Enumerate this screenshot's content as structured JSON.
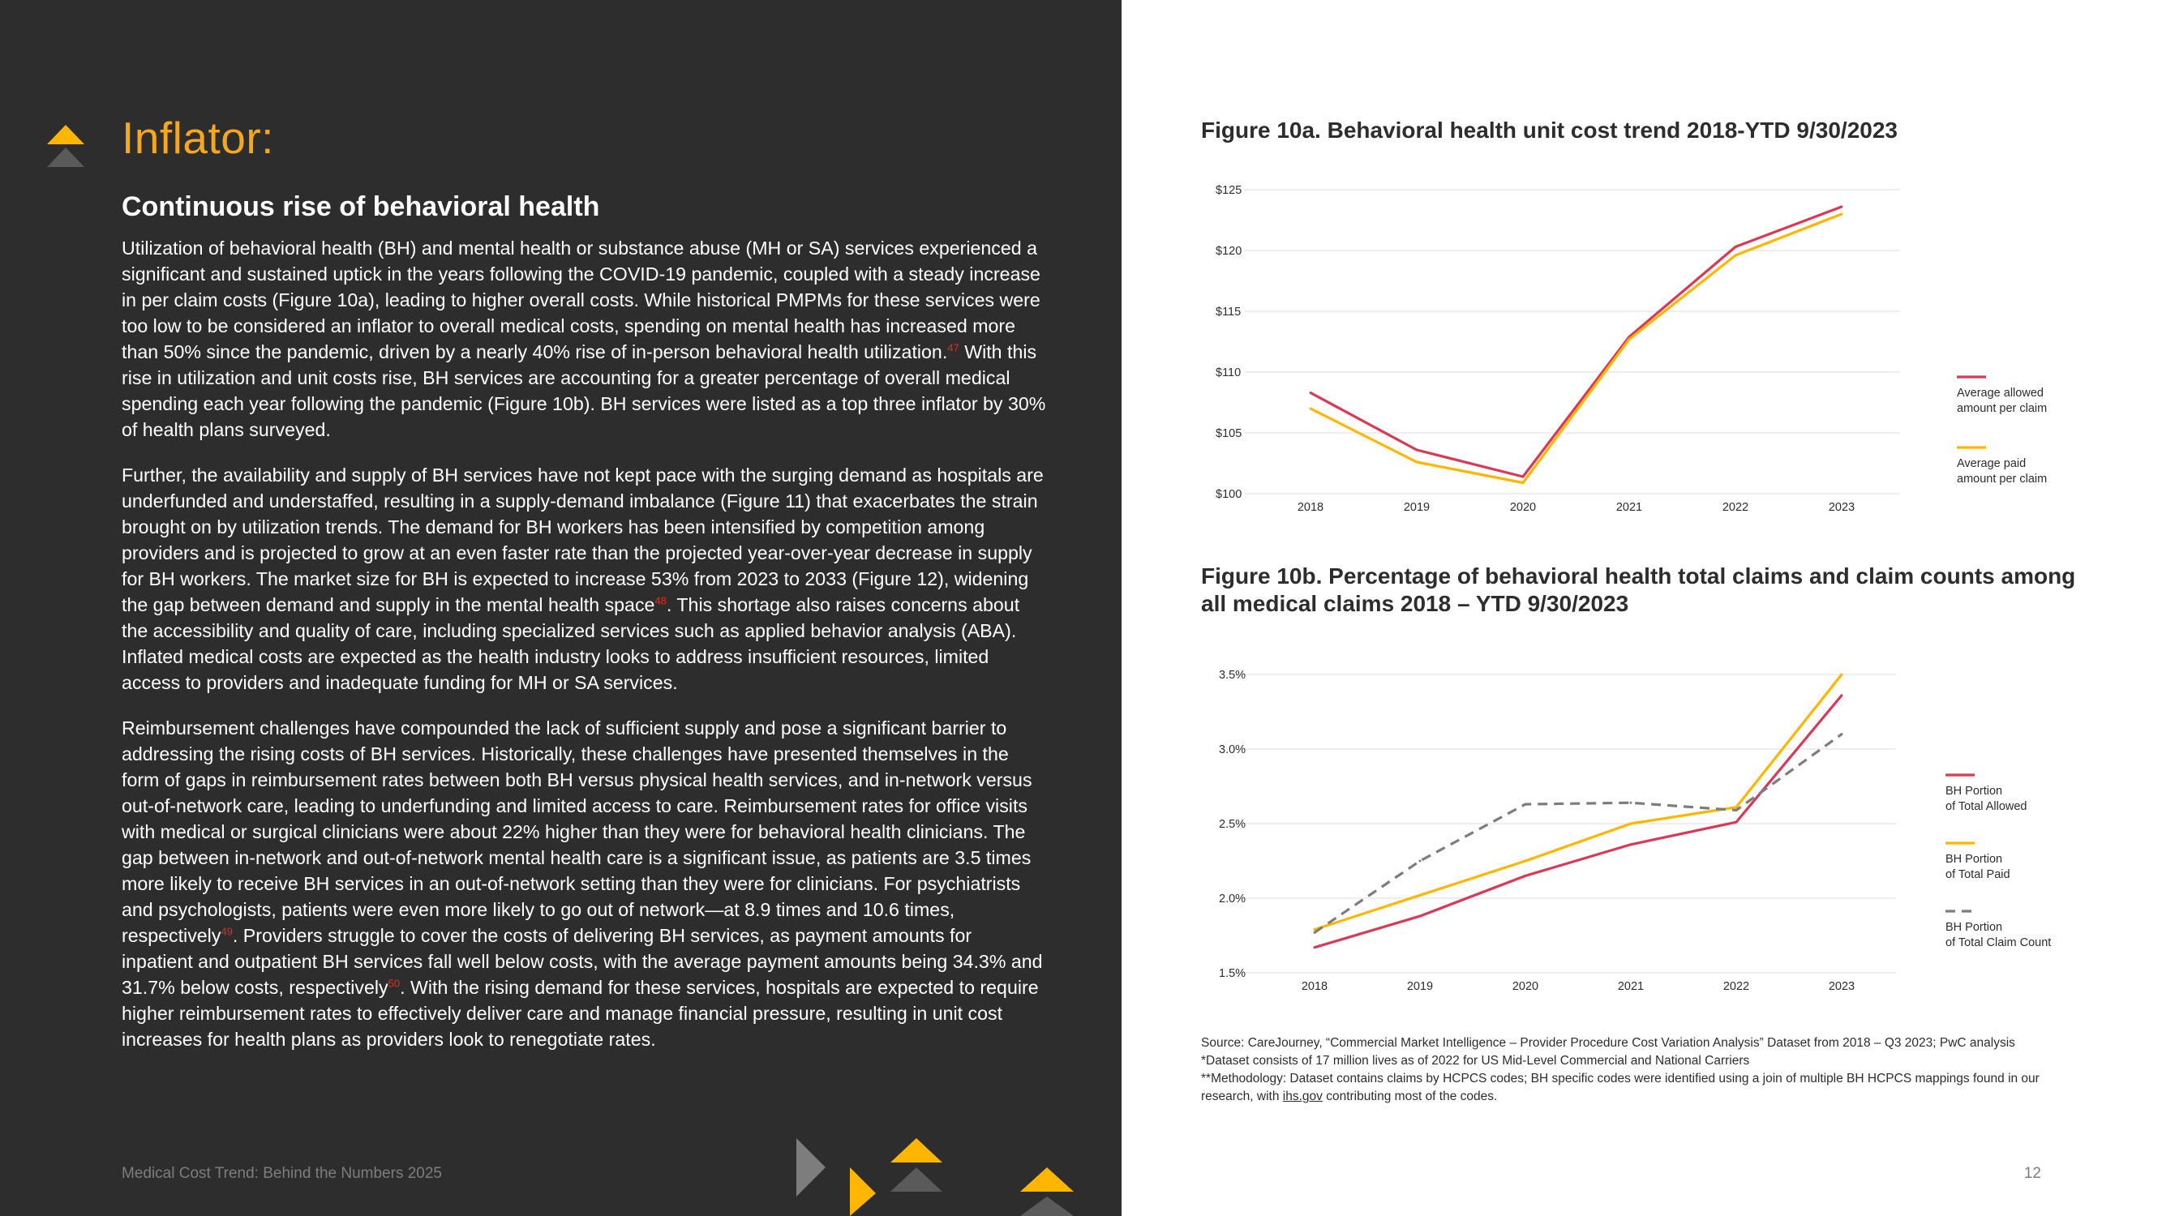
{
  "left": {
    "heading": "Inflator:",
    "subheading": "Continuous rise of behavioral health",
    "para1": {
      "t1": "Utilization of behavioral health (BH) and mental health or substance abuse (MH or SA) services experienced a significant and sustained uptick in the years following the COVID-19 pandemic, coupled with a steady increase in per claim costs (Figure 10a), leading to higher overall costs.  While historical PMPMs for these services were too low to be considered an inflator to overall medical costs, spending on mental health has increased more than 50% since the pandemic, driven by a nearly 40% rise of in-person behavioral health utilization.",
      "fn1": "47",
      "t2": " With this rise in utilization and unit costs rise, BH services are accounting for a greater percentage of overall medical spending each year following the pandemic (Figure 10b). BH services were listed as a top three inflator by 30% of health plans surveyed."
    },
    "para2": {
      "t1": "Further, the availability and supply of BH services have not kept pace with the surging demand as hospitals are underfunded and understaffed, resulting in a supply-demand imbalance (Figure 11) that exacerbates the strain brought on by utilization trends. The demand for BH workers has been intensified by competition among providers and is projected to grow at an even faster rate than the projected year-over-year decrease in supply for BH workers. The market size for BH is expected to increase 53% from 2023 to 2033 (Figure 12), widening the gap between demand and supply in the mental health space",
      "fn1": "48",
      "t2": ". This shortage also raises concerns about the accessibility and quality of care, including specialized services such as applied behavior analysis (ABA). Inflated medical costs are expected as the health industry looks to address insufficient resources, limited access to providers and inadequate funding for MH or SA services."
    },
    "para3": {
      "t1": "Reimbursement challenges have compounded the lack of sufficient supply and pose a significant barrier to addressing the rising costs of BH services. Historically, these challenges have presented themselves in the form of gaps in reimbursement rates between both BH versus physical health services, and in-network versus out-of-network care, leading to underfunding and limited access to care. Reimbursement rates for office visits with medical or surgical clinicians were about 22% higher than they were for behavioral health clinicians. The gap between in-network and out-of-network mental health care is a significant issue, as patients are 3.5 times more likely to receive BH services in an out-of-network setting than they were for clinicians. For psychiatrists and psychologists, patients were even more likely to go out of network—at 8.9 times and 10.6 times, respectively",
      "fn1": "49",
      "t2": ". Providers struggle to cover the costs of delivering BH services, as payment amounts for inpatient and outpatient BH services fall well below costs, with the average payment amounts being 34.3% and 31.7% below costs, respectively",
      "fn2": "50",
      "t3": ". With the rising demand for these services, hospitals are expected to require higher reimbursement rates to effectively deliver care and manage financial pressure, resulting in unit cost increases for health plans as providers look to renegotiate rates."
    },
    "footer": "Medical Cost Trend: Behind the Numbers 2025"
  },
  "right": {
    "fig10a_title": "Figure 10a. Behavioral health unit cost trend 2018-YTD 9/30/2023",
    "fig10b_title": "Figure 10b. Percentage of behavioral health total claims and claim counts among all medical claims 2018 – YTD 9/30/2023",
    "source_lines": [
      "Source: CareJourney, “Commercial Market Intelligence – Provider Procedure Cost Variation Analysis” Dataset from 2018 – Q3 2023; PwC analysis",
      "*Dataset consists of 17 million lives as of 2022 for US Mid-Level Commercial and National Carriers"
    ],
    "source_method_pre": "**Methodology: Dataset contains claims by HCPCS codes; BH specific codes were identified using a join of multiple BH HCPCS mappings found in our research, with ",
    "source_link": "ihs.gov",
    "source_method_post": " contributing most of the codes.",
    "page_number": "12"
  },
  "colors": {
    "dark_panel": "#2d2d2d",
    "accent_yellow": "#ffb600",
    "accent_red": "#d93954",
    "gray_dash": "#7d7d7d"
  },
  "chart_data": [
    {
      "type": "line",
      "title": "Figure 10a. Behavioral health unit cost trend 2018-YTD 9/30/2023",
      "x": [
        "2018",
        "2019",
        "2020",
        "2021",
        "2022",
        "2023"
      ],
      "ylim": [
        100,
        125
      ],
      "yticks": [
        100,
        105,
        110,
        115,
        120,
        125
      ],
      "ytick_labels": [
        "$100",
        "$105",
        "$110",
        "$115",
        "$120",
        "$125"
      ],
      "grid": true,
      "legend": "right",
      "series": [
        {
          "name": "Average allowed amount per claim",
          "legend_lines": [
            "Average allowed",
            "amount per claim"
          ],
          "color": "#d93954",
          "dash": false,
          "values": [
            108.3,
            103.6,
            101.4,
            112.9,
            120.3,
            123.6
          ]
        },
        {
          "name": "Average paid amount per claim",
          "legend_lines": [
            "Average paid",
            "amount per claim"
          ],
          "color": "#ffb600",
          "dash": false,
          "values": [
            107.0,
            102.6,
            100.9,
            112.7,
            119.6,
            123.0
          ]
        }
      ]
    },
    {
      "type": "line",
      "title": "Figure 10b. Percentage of behavioral health total claims and claim counts among all medical claims 2018 – YTD 9/30/2023",
      "x": [
        "2018",
        "2019",
        "2020",
        "2021",
        "2022",
        "2023"
      ],
      "ylim": [
        1.5,
        3.5
      ],
      "yticks": [
        1.5,
        2.0,
        2.5,
        3.0,
        3.5
      ],
      "ytick_labels": [
        "1.5%",
        "2.0%",
        "2.5%",
        "3.0%",
        "3.5%"
      ],
      "grid": true,
      "legend": "right",
      "series": [
        {
          "name": "BH Portion of Total Allowed",
          "legend_lines": [
            "BH Portion",
            "of Total Allowed"
          ],
          "color": "#d93954",
          "dash": false,
          "values": [
            1.67,
            1.88,
            2.15,
            2.36,
            2.51,
            3.36
          ]
        },
        {
          "name": "BH Portion of Total Paid",
          "legend_lines": [
            "BH Portion",
            "of Total Paid"
          ],
          "color": "#ffb600",
          "dash": false,
          "values": [
            1.79,
            2.02,
            2.25,
            2.5,
            2.61,
            3.5
          ]
        },
        {
          "name": "BH Portion of Total Claim Count",
          "legend_lines": [
            "BH Portion",
            "of Total Claim Count"
          ],
          "color": "#7d7d7d",
          "dash": true,
          "values": [
            1.77,
            2.25,
            2.63,
            2.64,
            2.59,
            3.1
          ]
        }
      ]
    }
  ]
}
